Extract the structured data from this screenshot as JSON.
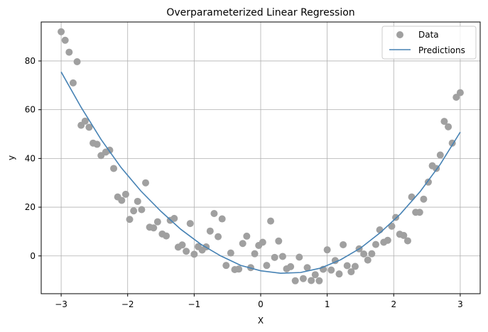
{
  "chart_data": {
    "type": "scatter",
    "title": "Overparameterized Linear Regression",
    "xlabel": "X",
    "ylabel": "y",
    "xlim": [
      -3.3,
      3.3
    ],
    "ylim": [
      -15.5,
      96
    ],
    "xticks": [
      -3,
      -2,
      -1,
      0,
      1,
      2,
      3
    ],
    "yticks": [
      0,
      20,
      40,
      60,
      80
    ],
    "grid": true,
    "legend_position": "top-right",
    "colors": {
      "data": "#a0a0a0",
      "predictions": "#4682b4"
    },
    "series": [
      {
        "name": "Data",
        "type": "scatter",
        "points": [
          [
            -3.0,
            92.0
          ],
          [
            -2.94,
            88.5
          ],
          [
            -2.88,
            83.6
          ],
          [
            -2.82,
            71.0
          ],
          [
            -2.76,
            79.7
          ],
          [
            -2.7,
            53.6
          ],
          [
            -2.64,
            55.3
          ],
          [
            -2.58,
            52.8
          ],
          [
            -2.52,
            46.3
          ],
          [
            -2.46,
            45.8
          ],
          [
            -2.4,
            41.2
          ],
          [
            -2.33,
            42.6
          ],
          [
            -2.27,
            43.4
          ],
          [
            -2.21,
            35.9
          ],
          [
            -2.15,
            24.2
          ],
          [
            -2.09,
            22.8
          ],
          [
            -2.03,
            25.3
          ],
          [
            -1.97,
            15.0
          ],
          [
            -1.91,
            18.5
          ],
          [
            -1.85,
            22.4
          ],
          [
            -1.79,
            19.0
          ],
          [
            -1.73,
            30.0
          ],
          [
            -1.67,
            11.8
          ],
          [
            -1.61,
            11.5
          ],
          [
            -1.55,
            14.0
          ],
          [
            -1.48,
            9.0
          ],
          [
            -1.42,
            8.2
          ],
          [
            -1.36,
            14.6
          ],
          [
            -1.3,
            15.4
          ],
          [
            -1.24,
            3.6
          ],
          [
            -1.18,
            4.5
          ],
          [
            -1.12,
            1.9
          ],
          [
            -1.06,
            13.3
          ],
          [
            -1.0,
            0.7
          ],
          [
            -0.94,
            3.8
          ],
          [
            -0.88,
            2.4
          ],
          [
            -0.82,
            3.7
          ],
          [
            -0.76,
            10.2
          ],
          [
            -0.7,
            17.4
          ],
          [
            -0.64,
            7.9
          ],
          [
            -0.58,
            15.2
          ],
          [
            -0.52,
            -3.9
          ],
          [
            -0.45,
            1.2
          ],
          [
            -0.39,
            -5.6
          ],
          [
            -0.33,
            -5.4
          ],
          [
            -0.27,
            5.1
          ],
          [
            -0.21,
            8.1
          ],
          [
            -0.15,
            -4.8
          ],
          [
            -0.09,
            0.9
          ],
          [
            -0.03,
            4.3
          ],
          [
            0.03,
            5.6
          ],
          [
            0.09,
            -3.9
          ],
          [
            0.15,
            14.3
          ],
          [
            0.21,
            -0.6
          ],
          [
            0.27,
            6.1
          ],
          [
            0.33,
            -0.2
          ],
          [
            0.39,
            -5.3
          ],
          [
            0.45,
            -4.4
          ],
          [
            0.52,
            -10.2
          ],
          [
            0.58,
            -0.5
          ],
          [
            0.64,
            -9.3
          ],
          [
            0.7,
            -4.8
          ],
          [
            0.76,
            -10.1
          ],
          [
            0.82,
            -7.7
          ],
          [
            0.88,
            -10.2
          ],
          [
            0.94,
            -5.5
          ],
          [
            1.0,
            2.5
          ],
          [
            1.06,
            -5.8
          ],
          [
            1.12,
            -1.9
          ],
          [
            1.18,
            -7.4
          ],
          [
            1.24,
            4.6
          ],
          [
            1.3,
            -4.0
          ],
          [
            1.36,
            -6.5
          ],
          [
            1.42,
            -4.3
          ],
          [
            1.48,
            2.9
          ],
          [
            1.55,
            0.8
          ],
          [
            1.61,
            -1.7
          ],
          [
            1.67,
            0.9
          ],
          [
            1.73,
            4.7
          ],
          [
            1.79,
            10.7
          ],
          [
            1.85,
            5.6
          ],
          [
            1.91,
            6.4
          ],
          [
            1.97,
            12.2
          ],
          [
            2.03,
            15.8
          ],
          [
            2.09,
            8.9
          ],
          [
            2.15,
            8.4
          ],
          [
            2.21,
            6.2
          ],
          [
            2.27,
            24.2
          ],
          [
            2.33,
            17.9
          ],
          [
            2.39,
            17.9
          ],
          [
            2.45,
            23.3
          ],
          [
            2.52,
            30.3
          ],
          [
            2.58,
            37.0
          ],
          [
            2.64,
            35.9
          ],
          [
            2.7,
            41.4
          ],
          [
            2.76,
            55.2
          ],
          [
            2.82,
            53.0
          ],
          [
            2.88,
            46.3
          ],
          [
            2.94,
            65.1
          ],
          [
            3.0,
            67.0
          ]
        ]
      },
      {
        "name": "Predictions",
        "type": "line",
        "x": [
          -3.0,
          -2.7,
          -2.4,
          -2.1,
          -1.8,
          -1.5,
          -1.2,
          -0.9,
          -0.6,
          -0.3,
          0.0,
          0.3,
          0.6,
          0.9,
          1.2,
          1.5,
          1.8,
          2.1,
          2.4,
          2.7,
          3.0
        ],
        "y": [
          75.5,
          61.0,
          47.8,
          36.3,
          26.6,
          18.3,
          10.9,
          4.8,
          0.0,
          -3.9,
          -6.1,
          -7.1,
          -6.8,
          -5.0,
          -1.6,
          3.2,
          9.6,
          17.2,
          26.5,
          37.6,
          50.8
        ]
      }
    ]
  }
}
